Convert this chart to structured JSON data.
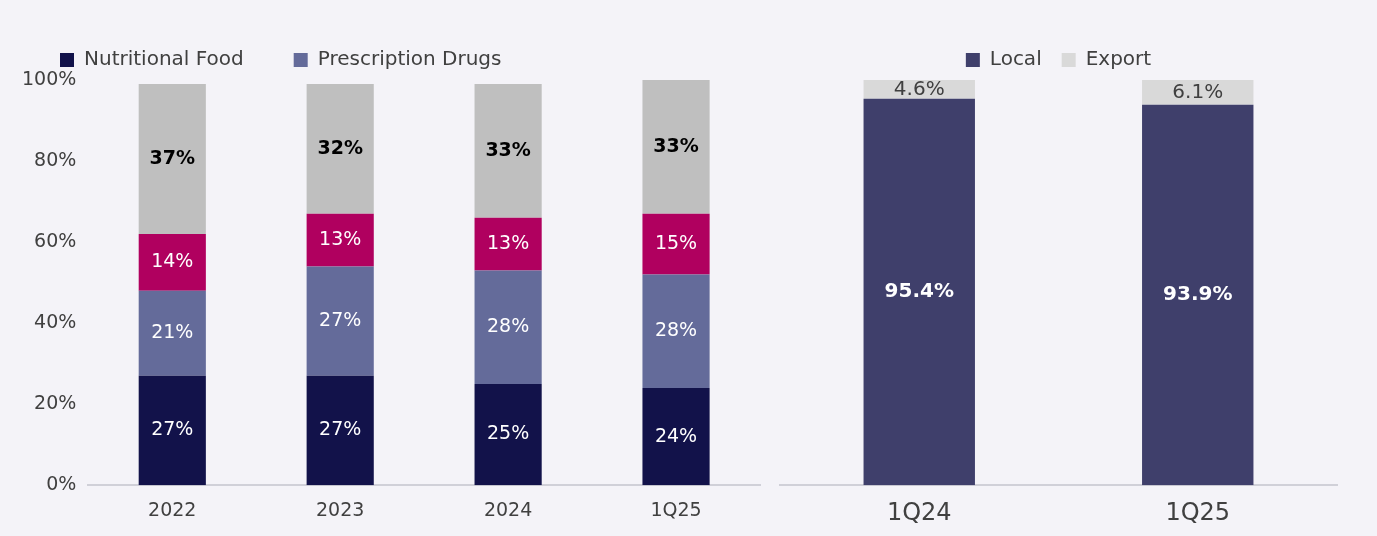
{
  "chart_data": [
    {
      "type": "bar",
      "stacked": true,
      "categories": [
        "2022",
        "2023",
        "2024",
        "1Q25"
      ],
      "ylim": [
        0,
        100
      ],
      "yticks": [
        {
          "value": 0,
          "label": "0%"
        },
        {
          "value": 20,
          "label": "20%"
        },
        {
          "value": 40,
          "label": "40%"
        },
        {
          "value": 60,
          "label": "60%"
        },
        {
          "value": 80,
          "label": "80%"
        },
        {
          "value": 100,
          "label": "100%"
        }
      ],
      "grid": false,
      "legend": "top",
      "series": [
        {
          "name": "Nutritional Food",
          "color": "#12124a",
          "values": [
            27,
            27,
            25,
            24
          ],
          "value_labels": [
            "27%",
            "27%",
            "25%",
            "24%"
          ]
        },
        {
          "name": "Prescription Drugs",
          "color": "#646b9a",
          "values": [
            21,
            27,
            28,
            28
          ],
          "value_labels": [
            "21%",
            "27%",
            "28%",
            "28%"
          ]
        },
        {
          "color": "#b0005f",
          "values": [
            14,
            13,
            13,
            15
          ],
          "value_labels": [
            "14%",
            "13%",
            "13%",
            "15%"
          ]
        },
        {
          "color": "#bfbfbf",
          "values": [
            37,
            32,
            33,
            33
          ],
          "value_labels": [
            "37%",
            "32%",
            "33%",
            "33%"
          ]
        }
      ]
    },
    {
      "type": "bar",
      "stacked": true,
      "categories": [
        "1Q24",
        "1Q25"
      ],
      "ylim": [
        0,
        100
      ],
      "tick_labels": "x",
      "grid": false,
      "legend": "top",
      "series": [
        {
          "name": "Local",
          "color": "#3f3f6b",
          "values": [
            95.4,
            93.9
          ],
          "value_labels": [
            "95.4%",
            "93.9%"
          ]
        },
        {
          "name": "Export",
          "color": "#d9d9d9",
          "values": [
            4.6,
            6.1
          ],
          "value_labels": [
            "4.6%",
            "6.1%"
          ]
        }
      ]
    }
  ]
}
